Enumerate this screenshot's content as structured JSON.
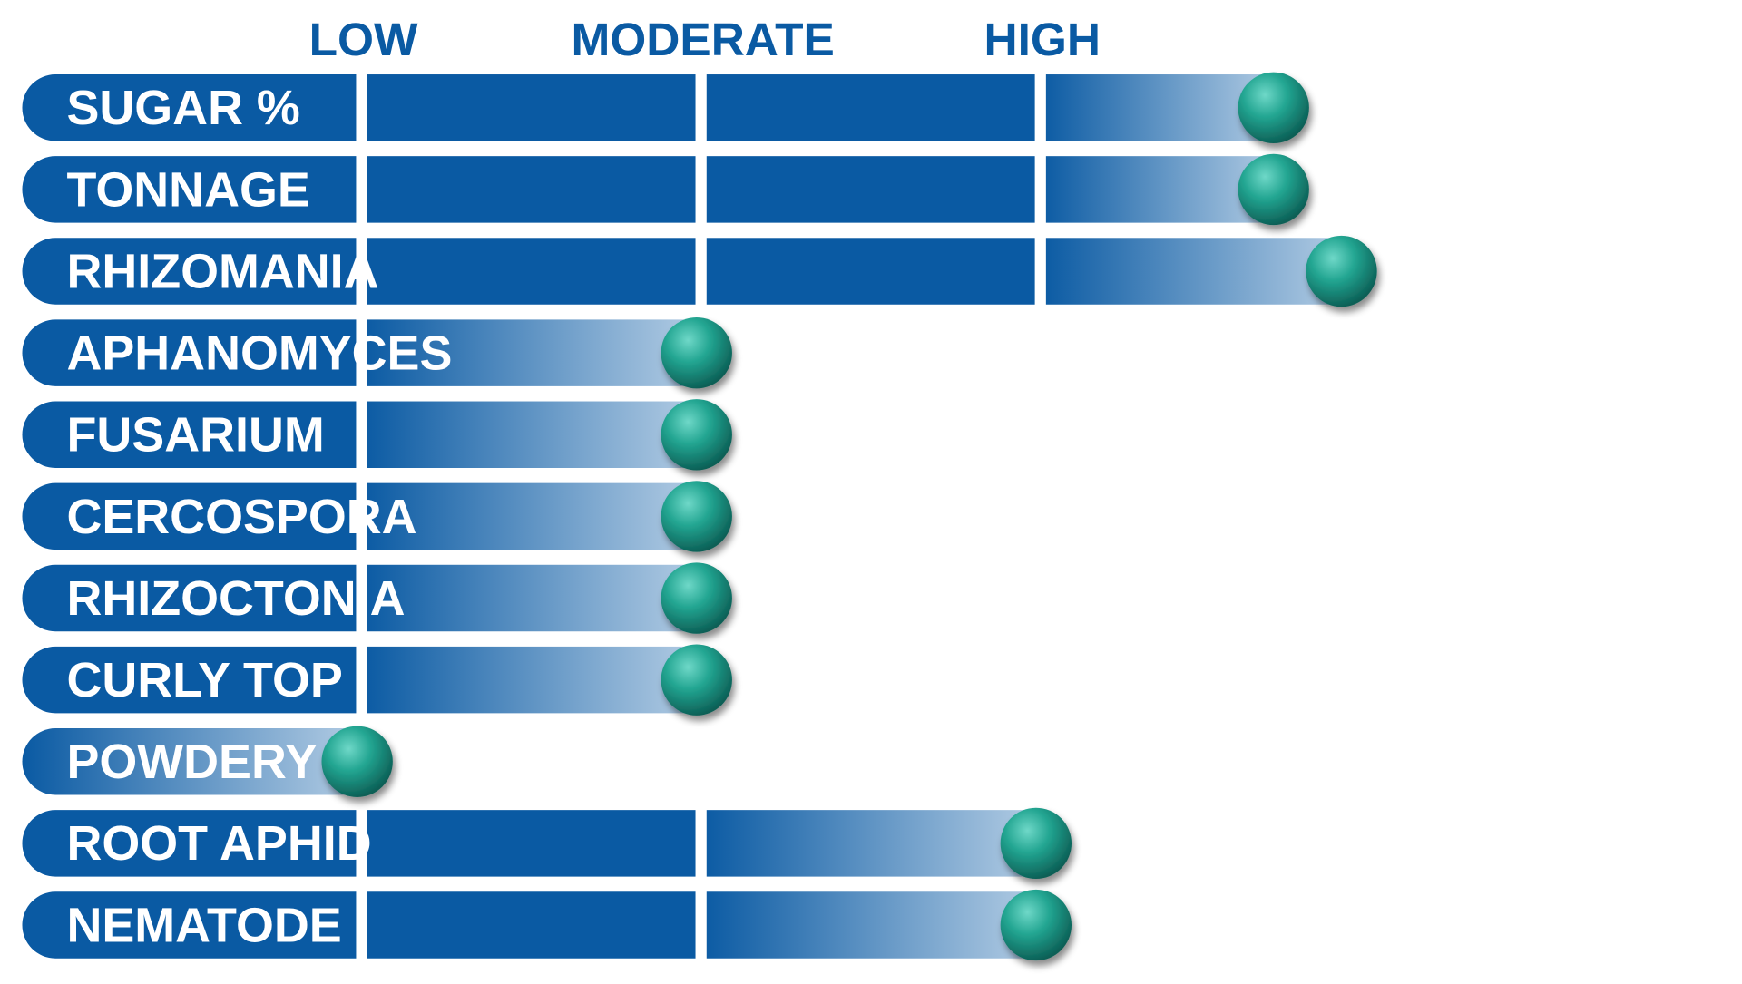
{
  "chart_data": {
    "type": "bar",
    "title": "",
    "xlabel": "",
    "ylabel": "",
    "scale_labels": [
      "LOW",
      "MODERATE",
      "HIGH"
    ],
    "xlim": [
      0,
      4
    ],
    "categories": [
      "SUGAR %",
      "TONNAGE",
      "RHIZOMANIA",
      "APHANOMYCES",
      "FUSARIUM",
      "CERCOSPORA",
      "RHIZOCTONIA",
      "CURLY TOP",
      "POWDERY MILDEW",
      "ROOT APHID",
      "NEMATODE"
    ],
    "values": [
      3.7,
      3.7,
      3.9,
      2.0,
      2.0,
      2.0,
      2.0,
      2.0,
      1.0,
      3.0,
      3.0
    ],
    "colors": {
      "bar_dark": "#0a5aa3",
      "bar_light": "#b4cde4",
      "marker": "#1f9e8c",
      "label_text": "#ffffff",
      "scale_text": "#0a5aa3",
      "background": "#ffffff"
    },
    "marker_icon": "teal-sphere",
    "grid": false,
    "legend": "none"
  }
}
